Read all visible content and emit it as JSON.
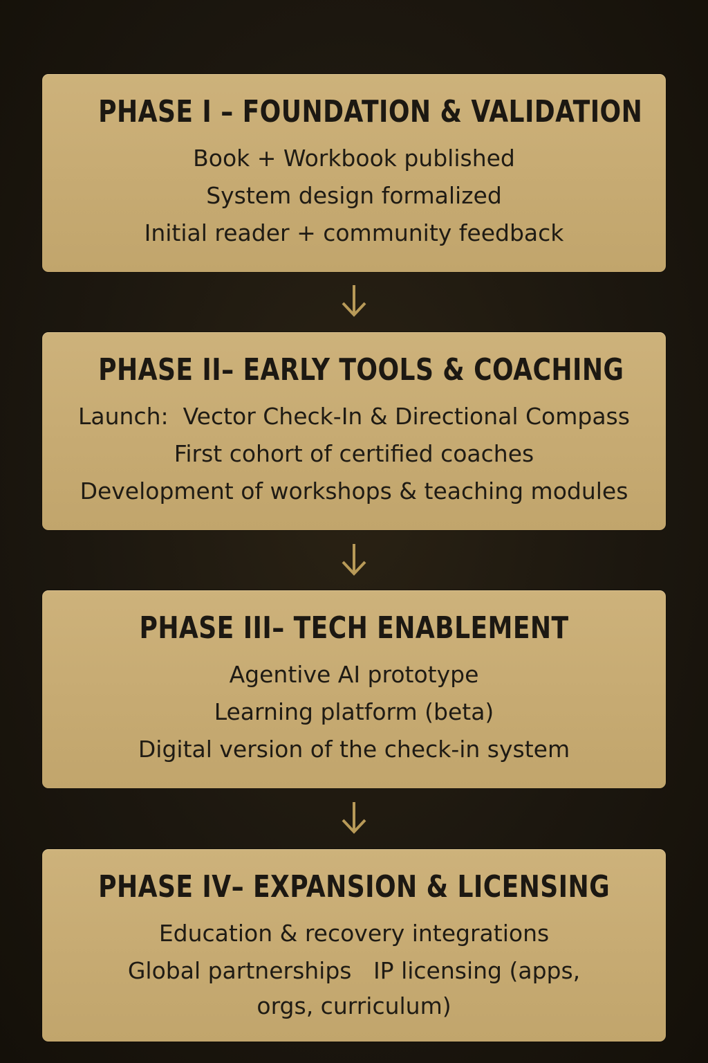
{
  "colors": {
    "background": "#1c170f",
    "card": "#c7ab73",
    "text": "#1d1a14",
    "arrow": "#b89a58"
  },
  "phases": [
    {
      "title": "PHASE I – FOUNDATION & VALIDATION",
      "items": [
        "Book + Workbook published",
        "System design formalized",
        "Initial reader + community feedback"
      ]
    },
    {
      "title": "PHASE II– EARLY TOOLS & COACHING",
      "items": [
        "Launch:  Vector Check-In & Directional Compass",
        "First cohort of certified coaches",
        "Development of workshops & teaching modules"
      ]
    },
    {
      "title": "PHASE III– TECH ENABLEMENT",
      "items": [
        "Agentive AI prototype",
        "Learning platform (beta)",
        "Digital version of the check-in system"
      ]
    },
    {
      "title": "PHASE IV– EXPANSION & LICENSING",
      "items": [
        "Education & recovery integrations",
        "Global partnerships   IP licensing (apps,",
        "orgs, curriculum)"
      ]
    }
  ],
  "arrows": [
    {
      "icon": "down-arrow-icon"
    },
    {
      "icon": "down-arrow-icon"
    },
    {
      "icon": "down-arrow-icon"
    }
  ]
}
